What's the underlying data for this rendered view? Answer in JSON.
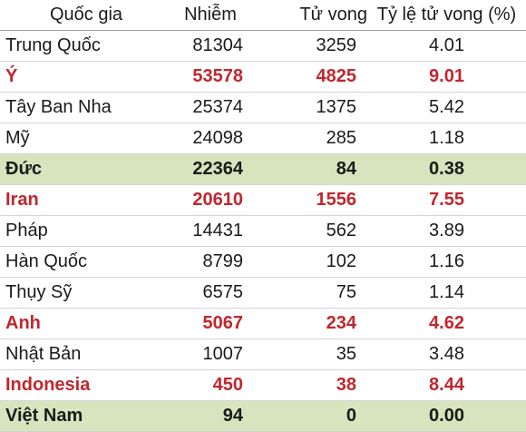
{
  "table": {
    "header": [
      "Quốc gia",
      "Nhiễm",
      "Tử vong",
      "Tỷ lệ tử vong (%)"
    ],
    "rows": [
      {
        "cells": [
          "Trung Quốc",
          "81304",
          "3259",
          "4.01"
        ],
        "color": "#1a1a1a",
        "bold": false,
        "fill": "#ffffff"
      },
      {
        "cells": [
          "Ý",
          "53578",
          "4825",
          "9.01"
        ],
        "color": "#c0272d",
        "bold": true,
        "fill": "#ffffff"
      },
      {
        "cells": [
          "Tây Ban Nha",
          "25374",
          "1375",
          "5.42"
        ],
        "color": "#1a1a1a",
        "bold": false,
        "fill": "#ffffff"
      },
      {
        "cells": [
          "Mỹ",
          "24098",
          "285",
          "1.18"
        ],
        "color": "#1a1a1a",
        "bold": false,
        "fill": "#ffffff"
      },
      {
        "cells": [
          "Đức",
          "22364",
          "84",
          "0.38"
        ],
        "color": "#1a1a1a",
        "bold": true,
        "fill": "#d7e4bd"
      },
      {
        "cells": [
          "Iran",
          "20610",
          "1556",
          "7.55"
        ],
        "color": "#c0272d",
        "bold": true,
        "fill": "#ffffff"
      },
      {
        "cells": [
          "Pháp",
          "14431",
          "562",
          "3.89"
        ],
        "color": "#1a1a1a",
        "bold": false,
        "fill": "#ffffff"
      },
      {
        "cells": [
          "Hàn Quốc",
          "8799",
          "102",
          "1.16"
        ],
        "color": "#1a1a1a",
        "bold": false,
        "fill": "#ffffff"
      },
      {
        "cells": [
          "Thụy Sỹ",
          "6575",
          "75",
          "1.14"
        ],
        "color": "#1a1a1a",
        "bold": false,
        "fill": "#ffffff"
      },
      {
        "cells": [
          "Anh",
          "5067",
          "234",
          "4.62"
        ],
        "color": "#c0272d",
        "bold": true,
        "fill": "#ffffff"
      },
      {
        "cells": [
          "Nhật Bản",
          "1007",
          "35",
          "3.48"
        ],
        "color": "#1a1a1a",
        "bold": false,
        "fill": "#ffffff"
      },
      {
        "cells": [
          "Indonesia",
          "450",
          "38",
          "8.44"
        ],
        "color": "#c0272d",
        "bold": true,
        "fill": "#ffffff"
      },
      {
        "cells": [
          "Việt Nam",
          "94",
          "0",
          "0.00"
        ],
        "color": "#1a1a1a",
        "bold": true,
        "fill": "#d7e4bd"
      }
    ]
  }
}
